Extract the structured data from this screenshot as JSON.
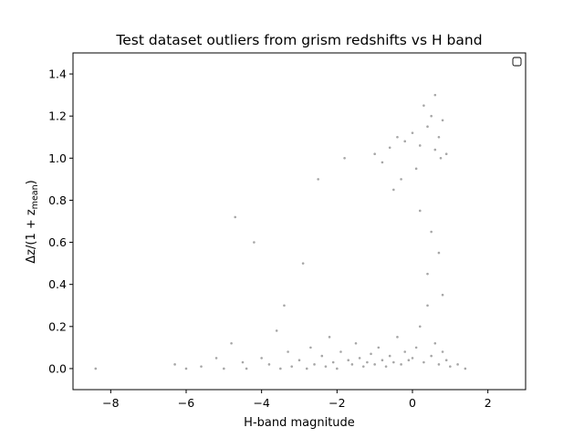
{
  "chart_data": {
    "type": "scatter",
    "title": "Test dataset outliers from grism redshifts vs H band",
    "xlabel": "H-band magnitude",
    "ylabel": "Δz/(1 + z_mean)",
    "ylabel_parts": {
      "prefix": "Δz/(1 + z",
      "sub": "mean",
      "suffix": ")"
    },
    "xlim": [
      -9.0,
      3.0
    ],
    "ylim": [
      -0.1,
      1.5
    ],
    "xticks": [
      -8,
      -6,
      -4,
      -2,
      0,
      2
    ],
    "xtick_labels": [
      "−8",
      "−6",
      "−4",
      "−2",
      "0",
      "2"
    ],
    "yticks": [
      0.0,
      0.2,
      0.4,
      0.6,
      0.8,
      1.0,
      1.2,
      1.4
    ],
    "ytick_labels": [
      "0.0",
      "0.2",
      "0.4",
      "0.6",
      "0.8",
      "1.0",
      "1.2",
      "1.4"
    ],
    "grid": false,
    "legend": "top-right (empty)",
    "marker_color": "#000000",
    "marker_alpha": 0.06,
    "series": [
      {
        "points": [
          [
            -8.4,
            0.0
          ],
          [
            -6.3,
            0.02
          ],
          [
            -6.0,
            0.0
          ],
          [
            -5.6,
            0.01
          ],
          [
            -5.2,
            0.05
          ],
          [
            -5.0,
            0.0
          ],
          [
            -4.8,
            0.12
          ],
          [
            -4.7,
            0.72
          ],
          [
            -4.5,
            0.03
          ],
          [
            -4.4,
            0.0
          ],
          [
            -4.2,
            0.6
          ],
          [
            -4.0,
            0.05
          ],
          [
            -3.8,
            0.02
          ],
          [
            -3.6,
            0.18
          ],
          [
            -3.5,
            0.0
          ],
          [
            -3.4,
            0.3
          ],
          [
            -3.3,
            0.08
          ],
          [
            -3.2,
            0.01
          ],
          [
            -3.0,
            0.04
          ],
          [
            -2.9,
            0.5
          ],
          [
            -2.8,
            0.0
          ],
          [
            -2.7,
            0.1
          ],
          [
            -2.6,
            0.02
          ],
          [
            -2.5,
            0.9
          ],
          [
            -2.4,
            0.06
          ],
          [
            -2.3,
            0.01
          ],
          [
            -2.2,
            0.15
          ],
          [
            -2.1,
            0.03
          ],
          [
            -2.0,
            0.0
          ],
          [
            -1.9,
            0.08
          ],
          [
            -1.8,
            1.0
          ],
          [
            -1.7,
            0.04
          ],
          [
            -1.6,
            0.02
          ],
          [
            -1.5,
            0.12
          ],
          [
            -1.4,
            0.05
          ],
          [
            -1.3,
            0.01
          ],
          [
            -1.2,
            0.03
          ],
          [
            -1.1,
            0.07
          ],
          [
            -1.0,
            0.02
          ],
          [
            -0.9,
            0.1
          ],
          [
            -0.8,
            0.04
          ],
          [
            -0.7,
            0.01
          ],
          [
            -0.6,
            0.06
          ],
          [
            -0.5,
            0.03
          ],
          [
            -0.4,
            0.15
          ],
          [
            -0.3,
            0.02
          ],
          [
            -0.2,
            0.08
          ],
          [
            -0.1,
            0.04
          ],
          [
            0.0,
            0.05
          ],
          [
            0.1,
            0.1
          ],
          [
            0.2,
            0.2
          ],
          [
            0.3,
            0.03
          ],
          [
            0.4,
            0.3
          ],
          [
            0.5,
            0.06
          ],
          [
            0.6,
            0.12
          ],
          [
            0.7,
            0.02
          ],
          [
            0.8,
            0.08
          ],
          [
            0.9,
            0.04
          ],
          [
            1.0,
            0.01
          ],
          [
            1.2,
            0.02
          ],
          [
            1.4,
            0.0
          ],
          [
            -1.0,
            1.02
          ],
          [
            -0.8,
            0.98
          ],
          [
            -0.6,
            1.05
          ],
          [
            -0.4,
            1.1
          ],
          [
            -0.2,
            1.08
          ],
          [
            0.0,
            1.12
          ],
          [
            0.2,
            1.06
          ],
          [
            0.4,
            1.15
          ],
          [
            0.5,
            1.2
          ],
          [
            0.6,
            1.04
          ],
          [
            0.7,
            1.1
          ],
          [
            0.8,
            1.18
          ],
          [
            0.9,
            1.02
          ],
          [
            0.3,
            1.25
          ],
          [
            0.1,
            0.95
          ],
          [
            -0.3,
            0.9
          ],
          [
            0.6,
            1.3
          ],
          [
            0.75,
            1.0
          ],
          [
            -0.5,
            0.85
          ],
          [
            0.2,
            0.75
          ],
          [
            0.5,
            0.65
          ],
          [
            0.7,
            0.55
          ],
          [
            0.4,
            0.45
          ],
          [
            0.8,
            0.35
          ]
        ]
      }
    ]
  }
}
